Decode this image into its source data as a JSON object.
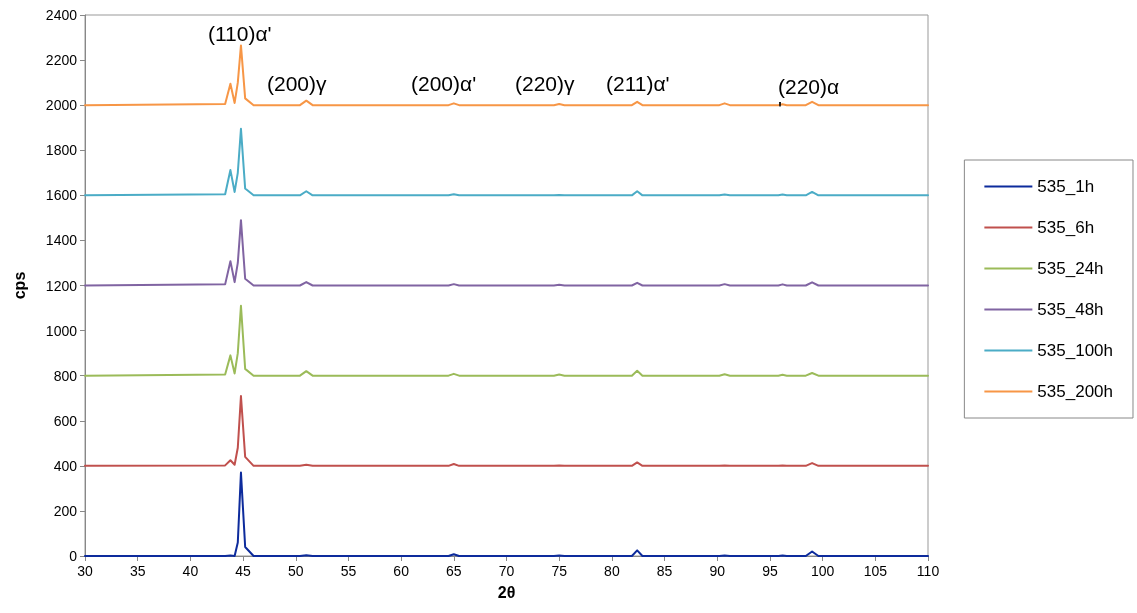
{
  "chart_data": {
    "type": "line",
    "xlabel": "2θ",
    "ylabel": "cps",
    "x": [
      30,
      43.3,
      43.8,
      44.2,
      44.5,
      44.8,
      45.2,
      46,
      50.4,
      51,
      51.6,
      64.5,
      65,
      65.5,
      74.5,
      75,
      75.5,
      81.9,
      82.4,
      82.9,
      90.2,
      90.7,
      91.2,
      95.8,
      96.2,
      96.6,
      98.4,
      99,
      99.6,
      110
    ],
    "series": [
      {
        "name": "535_1h",
        "color": "#0d2b9c",
        "values": [
          0,
          0,
          2,
          0,
          60,
          370,
          40,
          0,
          0,
          3,
          0,
          0,
          8,
          0,
          0,
          2,
          0,
          0,
          25,
          0,
          0,
          2,
          0,
          0,
          2,
          0,
          0,
          20,
          0,
          0
        ]
      },
      {
        "name": "535_6h",
        "color": "#c0504d",
        "values": [
          400,
          402,
          425,
          405,
          480,
          710,
          440,
          400,
          400,
          405,
          400,
          400,
          408,
          400,
          400,
          402,
          400,
          400,
          415,
          400,
          400,
          402,
          400,
          400,
          402,
          400,
          400,
          412,
          400,
          400
        ]
      },
      {
        "name": "535_24h",
        "color": "#9bbb59",
        "values": [
          800,
          805,
          890,
          810,
          900,
          1110,
          830,
          800,
          800,
          820,
          800,
          800,
          808,
          800,
          800,
          805,
          800,
          800,
          822,
          800,
          800,
          806,
          800,
          800,
          804,
          800,
          800,
          812,
          800,
          800
        ]
      },
      {
        "name": "535_48h",
        "color": "#8064a2",
        "values": [
          1200,
          1205,
          1308,
          1215,
          1300,
          1490,
          1230,
          1200,
          1200,
          1215,
          1200,
          1200,
          1206,
          1200,
          1200,
          1203,
          1200,
          1200,
          1212,
          1200,
          1200,
          1206,
          1200,
          1200,
          1205,
          1200,
          1200,
          1214,
          1200,
          1200
        ]
      },
      {
        "name": "535_100h",
        "color": "#4bacc6",
        "values": [
          1600,
          1605,
          1712,
          1615,
          1700,
          1895,
          1630,
          1600,
          1600,
          1618,
          1600,
          1600,
          1605,
          1600,
          1600,
          1602,
          1600,
          1600,
          1618,
          1600,
          1600,
          1604,
          1600,
          1600,
          1604,
          1600,
          1600,
          1615,
          1600,
          1600
        ]
      },
      {
        "name": "535_200h",
        "color": "#f79646",
        "values": [
          2000,
          2005,
          2095,
          2010,
          2100,
          2265,
          2030,
          2000,
          2000,
          2020,
          2000,
          2000,
          2008,
          2000,
          2000,
          2005,
          2000,
          2000,
          2015,
          2000,
          2000,
          2008,
          2000,
          2000,
          2004,
          2000,
          2000,
          2015,
          2000,
          2000
        ]
      }
    ],
    "annotations": [
      "(110)α'",
      "(200)γ",
      "(200)α'",
      "(220)γ",
      "(211)α'",
      "(220)α\n'"
    ],
    "xlim": [
      30,
      110
    ],
    "xticks": [
      30,
      35,
      40,
      45,
      50,
      55,
      60,
      65,
      70,
      75,
      80,
      85,
      90,
      95,
      100,
      105,
      110
    ],
    "ylim": [
      0,
      2400
    ],
    "yticks": [
      0,
      200,
      400,
      600,
      800,
      1000,
      1200,
      1400,
      1600,
      1800,
      2000,
      2200,
      2400
    ],
    "grid": false,
    "legend": "right",
    "marker": "none",
    "line_style": "solid"
  }
}
